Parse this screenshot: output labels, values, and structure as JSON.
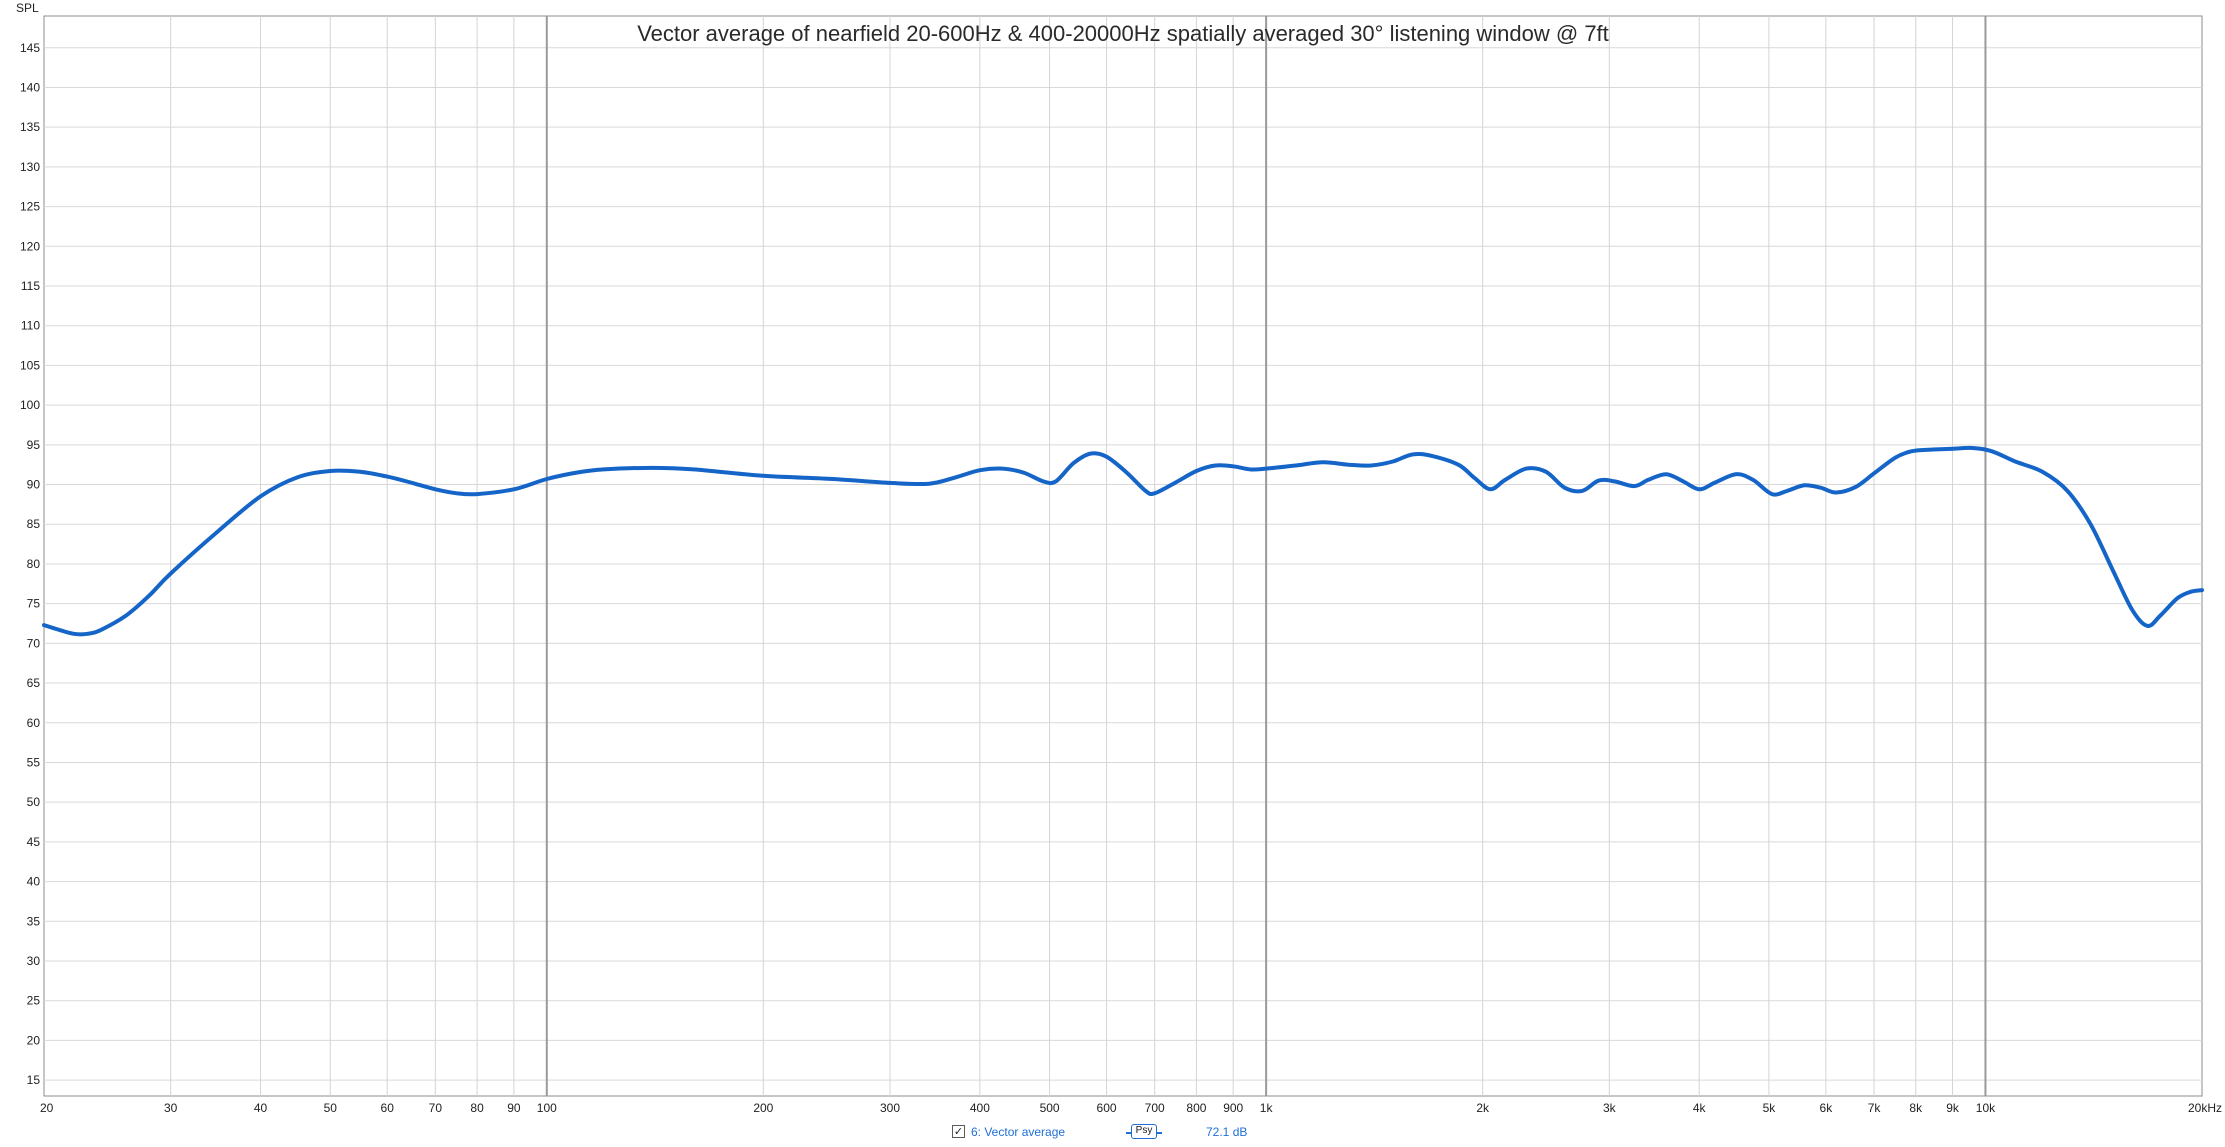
{
  "chart_data": {
    "type": "line",
    "title": "Vector average of nearfield 20-600Hz & 400-20000Hz spatially averaged 30° listening window @ 7ft",
    "ylabel": "SPL",
    "xscale": "log",
    "xlim": [
      20,
      20000
    ],
    "ylim": [
      13,
      149
    ],
    "grid": true,
    "x_ticks": [
      {
        "v": 20,
        "label": "20"
      },
      {
        "v": 30,
        "label": "30"
      },
      {
        "v": 40,
        "label": "40"
      },
      {
        "v": 50,
        "label": "50"
      },
      {
        "v": 60,
        "label": "60"
      },
      {
        "v": 70,
        "label": "70"
      },
      {
        "v": 80,
        "label": "80"
      },
      {
        "v": 90,
        "label": "90"
      },
      {
        "v": 100,
        "label": "100"
      },
      {
        "v": 200,
        "label": "200"
      },
      {
        "v": 300,
        "label": "300"
      },
      {
        "v": 400,
        "label": "400"
      },
      {
        "v": 500,
        "label": "500"
      },
      {
        "v": 600,
        "label": "600"
      },
      {
        "v": 700,
        "label": "700"
      },
      {
        "v": 800,
        "label": "800"
      },
      {
        "v": 900,
        "label": "900"
      },
      {
        "v": 1000,
        "label": "1k"
      },
      {
        "v": 2000,
        "label": "2k"
      },
      {
        "v": 3000,
        "label": "3k"
      },
      {
        "v": 4000,
        "label": "4k"
      },
      {
        "v": 5000,
        "label": "5k"
      },
      {
        "v": 6000,
        "label": "6k"
      },
      {
        "v": 7000,
        "label": "7k"
      },
      {
        "v": 8000,
        "label": "8k"
      },
      {
        "v": 9000,
        "label": "9k"
      },
      {
        "v": 10000,
        "label": "10k"
      },
      {
        "v": 20000,
        "label": "20kHz"
      }
    ],
    "x_major": [
      100,
      1000,
      10000
    ],
    "y_ticks": [
      15,
      20,
      25,
      30,
      35,
      40,
      45,
      50,
      55,
      60,
      65,
      70,
      75,
      80,
      85,
      90,
      95,
      100,
      105,
      110,
      115,
      120,
      125,
      130,
      135,
      140,
      145
    ],
    "series": [
      {
        "name": "6: Vector average",
        "color": "#1565c8",
        "points": [
          [
            20,
            72.3
          ],
          [
            21,
            71.7
          ],
          [
            22,
            71.2
          ],
          [
            23,
            71.2
          ],
          [
            24,
            71.7
          ],
          [
            26,
            73.5
          ],
          [
            28,
            76.0
          ],
          [
            30,
            78.8
          ],
          [
            35,
            84.2
          ],
          [
            40,
            88.5
          ],
          [
            45,
            90.9
          ],
          [
            50,
            91.7
          ],
          [
            55,
            91.6
          ],
          [
            60,
            91.0
          ],
          [
            65,
            90.2
          ],
          [
            70,
            89.4
          ],
          [
            75,
            88.9
          ],
          [
            80,
            88.8
          ],
          [
            90,
            89.4
          ],
          [
            100,
            90.7
          ],
          [
            110,
            91.5
          ],
          [
            120,
            91.9
          ],
          [
            140,
            92.1
          ],
          [
            160,
            91.9
          ],
          [
            200,
            91.1
          ],
          [
            250,
            90.7
          ],
          [
            300,
            90.2
          ],
          [
            340,
            90.1
          ],
          [
            370,
            90.9
          ],
          [
            400,
            91.8
          ],
          [
            430,
            92.0
          ],
          [
            460,
            91.5
          ],
          [
            490,
            90.4
          ],
          [
            510,
            90.4
          ],
          [
            540,
            92.7
          ],
          [
            570,
            93.9
          ],
          [
            600,
            93.5
          ],
          [
            640,
            91.5
          ],
          [
            680,
            89.2
          ],
          [
            700,
            88.9
          ],
          [
            750,
            90.3
          ],
          [
            800,
            91.7
          ],
          [
            850,
            92.4
          ],
          [
            900,
            92.3
          ],
          [
            950,
            91.9
          ],
          [
            1000,
            92.0
          ],
          [
            1100,
            92.4
          ],
          [
            1200,
            92.8
          ],
          [
            1300,
            92.5
          ],
          [
            1400,
            92.4
          ],
          [
            1500,
            92.9
          ],
          [
            1600,
            93.8
          ],
          [
            1700,
            93.6
          ],
          [
            1850,
            92.5
          ],
          [
            1950,
            90.8
          ],
          [
            2050,
            89.4
          ],
          [
            2150,
            90.6
          ],
          [
            2300,
            92.0
          ],
          [
            2450,
            91.6
          ],
          [
            2600,
            89.6
          ],
          [
            2750,
            89.2
          ],
          [
            2900,
            90.5
          ],
          [
            3050,
            90.4
          ],
          [
            3250,
            89.8
          ],
          [
            3400,
            90.6
          ],
          [
            3600,
            91.3
          ],
          [
            3800,
            90.4
          ],
          [
            4000,
            89.4
          ],
          [
            4200,
            90.2
          ],
          [
            4500,
            91.3
          ],
          [
            4750,
            90.6
          ],
          [
            5050,
            88.8
          ],
          [
            5300,
            89.2
          ],
          [
            5600,
            89.9
          ],
          [
            5900,
            89.6
          ],
          [
            6200,
            89.0
          ],
          [
            6600,
            89.7
          ],
          [
            7000,
            91.4
          ],
          [
            7500,
            93.4
          ],
          [
            7900,
            94.2
          ],
          [
            8400,
            94.4
          ],
          [
            9000,
            94.5
          ],
          [
            9600,
            94.6
          ],
          [
            10200,
            94.2
          ],
          [
            11000,
            92.9
          ],
          [
            12000,
            91.6
          ],
          [
            13000,
            89.2
          ],
          [
            14000,
            85.0
          ],
          [
            15000,
            79.4
          ],
          [
            16000,
            74.2
          ],
          [
            16800,
            72.2
          ],
          [
            17500,
            73.5
          ],
          [
            18500,
            75.7
          ],
          [
            19300,
            76.5
          ],
          [
            20000,
            76.7
          ]
        ]
      }
    ]
  },
  "legend": {
    "checkbox": "✓",
    "entry_label": "6: Vector average",
    "psy_label": "Psy",
    "value_text": "72.1 dB"
  }
}
